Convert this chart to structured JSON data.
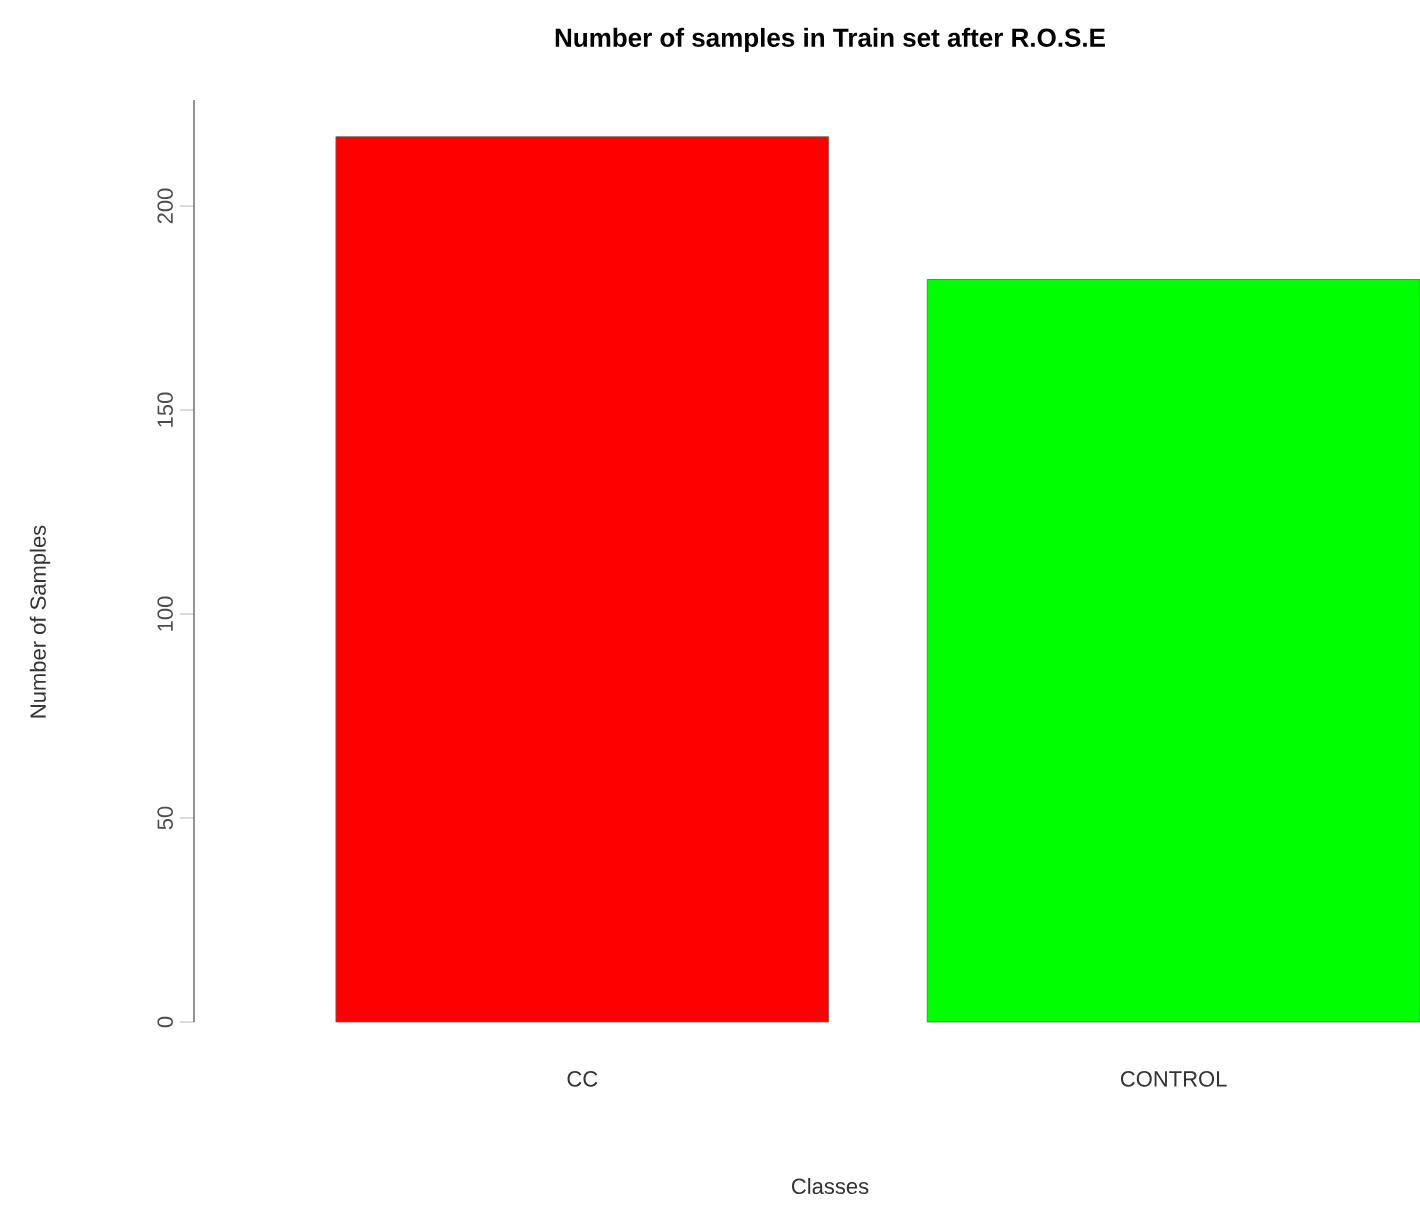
{
  "chart_data": {
    "type": "bar",
    "title": "Number of samples in Train set after R.O.S.E",
    "xlabel": "Classes",
    "ylabel": "Number of Samples",
    "categories": [
      "CC",
      "CONTROL"
    ],
    "values": [
      217,
      182
    ],
    "colors": [
      "#ff0000",
      "#00ff00"
    ],
    "ylim": [
      0,
      226
    ],
    "yticks": [
      0,
      50,
      100,
      150,
      200
    ]
  }
}
